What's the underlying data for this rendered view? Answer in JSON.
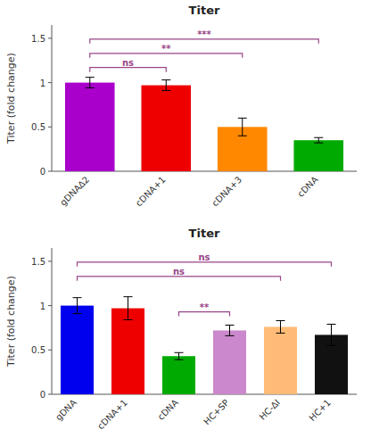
{
  "chart_data": [
    {
      "type": "bar",
      "title": "Titer",
      "ylabel": "Titer (fold change)",
      "categories": [
        "gDNA∆2",
        "cDNA+1",
        "cDNA+3",
        "cDNA"
      ],
      "values": [
        1.0,
        0.97,
        0.5,
        0.35
      ],
      "errors": [
        0.06,
        0.06,
        0.1,
        0.03
      ],
      "colors": [
        "#AA00CC",
        "#EE0000",
        "#FF8800",
        "#00AA00"
      ],
      "ylim": [
        0,
        1.65
      ],
      "yticks": [
        0.0,
        0.5,
        1.0,
        1.5
      ],
      "grid": false,
      "annotations": [
        {
          "x1": 0,
          "x2": 1,
          "y": 1.12,
          "label": "ns",
          "color": "#994488"
        },
        {
          "x1": 0,
          "x2": 2,
          "y": 1.28,
          "label": "**",
          "color": "#994488"
        },
        {
          "x1": 0,
          "x2": 3,
          "y": 1.44,
          "label": "***",
          "color": "#994488"
        }
      ]
    },
    {
      "type": "bar",
      "title": "Titer",
      "ylabel": "Titer (fold change)",
      "categories": [
        "gDNA",
        "cDNA+1",
        "cDNA",
        "HC+SP",
        "HC-∆I",
        "HC+1"
      ],
      "values": [
        1.0,
        0.97,
        0.43,
        0.72,
        0.76,
        0.67
      ],
      "errors": [
        0.09,
        0.13,
        0.04,
        0.06,
        0.07,
        0.12
      ],
      "colors": [
        "#0000EE",
        "#EE0000",
        "#00AA00",
        "#CC88CC",
        "#FFBB77",
        "#111111"
      ],
      "ylim": [
        0,
        1.65
      ],
      "yticks": [
        0.0,
        0.5,
        1.0,
        1.5
      ],
      "grid": false,
      "annotations": [
        {
          "x1": 0,
          "x2": 4,
          "y": 1.28,
          "label": "ns",
          "color": "#994488"
        },
        {
          "x1": 0,
          "x2": 5,
          "y": 1.44,
          "label": "ns",
          "color": "#994488"
        },
        {
          "x1": 2,
          "x2": 3,
          "y": 0.88,
          "label": "**",
          "color": "#994488"
        }
      ]
    }
  ]
}
